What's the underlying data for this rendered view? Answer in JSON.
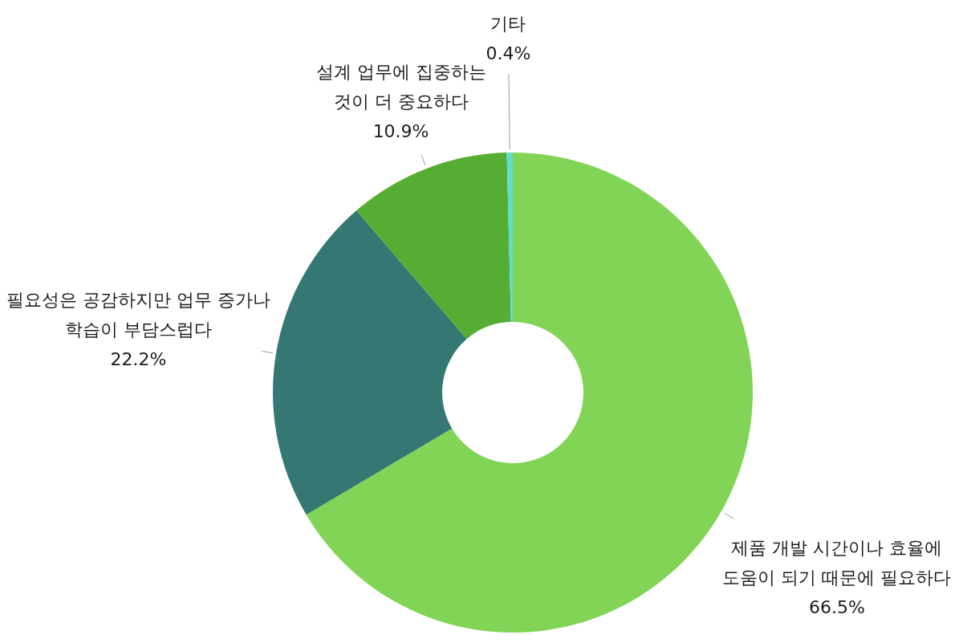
{
  "chart_data": {
    "type": "donut",
    "categories": [
      "제품 개발 시간이나 효율에\n도움이 되기 때문에 필요하다",
      "필요성은 공감하지만 업무 증가나\n학습이 부담스럽다",
      "설계 업무에 집중하는\n것이 더 중요하다",
      "기타"
    ],
    "values": [
      66.5,
      22.2,
      10.9,
      0.4
    ],
    "value_labels": [
      "66.5%",
      "22.2%",
      "10.9%",
      "0.4%"
    ],
    "colors": [
      "#81d455",
      "#357873",
      "#55ad33",
      "#63dccd"
    ]
  }
}
